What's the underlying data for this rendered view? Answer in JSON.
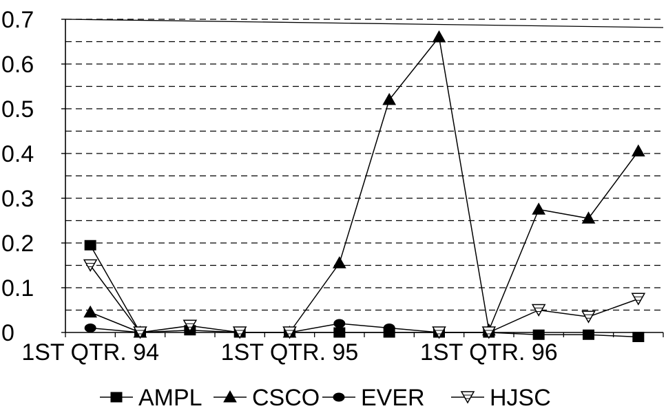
{
  "chart_data": {
    "type": "line",
    "title": "",
    "xlabel": "",
    "ylabel": "",
    "x_tick_labels": [
      {
        "label": "1ST QTR. 94",
        "index": 0
      },
      {
        "label": "1ST QTR. 95",
        "index": 4
      },
      {
        "label": "1ST QTR. 96",
        "index": 8
      }
    ],
    "y_ticks": [
      "0",
      "0.1",
      "0.2",
      "0.3",
      "0.4",
      "0.5",
      "0.6",
      "0.7"
    ],
    "ylim": [
      0,
      0.7
    ],
    "grid": "horizontal dashed",
    "legend_position": "bottom",
    "series": [
      {
        "name": "AMPL",
        "marker": "square",
        "values": [
          0.195,
          0.0,
          0.005,
          0.0,
          0.0,
          0.0,
          0.0,
          0.0,
          0.0,
          -0.005,
          -0.005,
          -0.01
        ]
      },
      {
        "name": "CSCO",
        "marker": "triangle",
        "values": [
          0.045,
          0.0,
          null,
          null,
          0.0,
          0.155,
          0.52,
          0.66,
          0.005,
          0.275,
          0.255,
          0.405
        ]
      },
      {
        "name": "EVER",
        "marker": "circle",
        "values": [
          0.01,
          0.0,
          null,
          null,
          0.0,
          0.02,
          0.01,
          0.0,
          0.0,
          null,
          null,
          null
        ]
      },
      {
        "name": "HJSC",
        "marker": "inverted-triangle",
        "values": [
          0.15,
          0.0,
          0.015,
          0.0,
          0.0,
          null,
          null,
          0.0,
          0.0,
          0.05,
          0.035,
          0.075
        ]
      }
    ]
  }
}
